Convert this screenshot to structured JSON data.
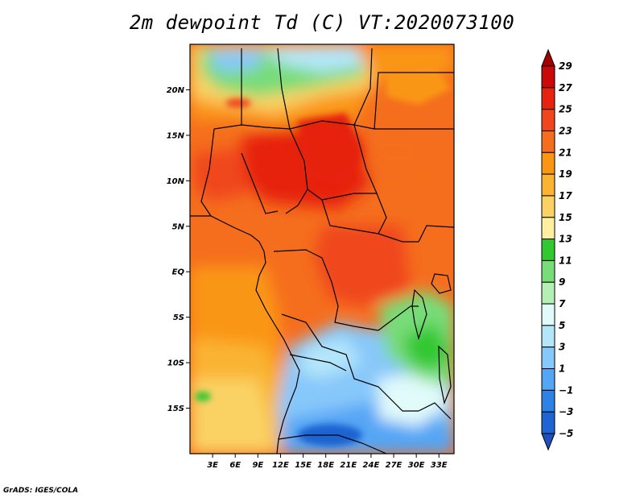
{
  "title": "2m dewpoint Td (C) VT:2020073100",
  "footer": "GrADS: IGES/COLA",
  "map": {
    "lon_range": [
      0,
      35
    ],
    "lat_range": [
      -20,
      25
    ],
    "lon_ticks": [
      "3E",
      "6E",
      "9E",
      "12E",
      "15E",
      "18E",
      "21E",
      "24E",
      "27E",
      "30E",
      "33E"
    ],
    "lat_ticks": [
      "20N",
      "15N",
      "10N",
      "5N",
      "EQ",
      "5S",
      "10S",
      "15S"
    ]
  },
  "colorbar": {
    "levels": [
      "29",
      "27",
      "25",
      "23",
      "21",
      "19",
      "17",
      "15",
      "13",
      "11",
      "9",
      "7",
      "5",
      "3",
      "1",
      "−1",
      "−3",
      "−5"
    ],
    "colors": [
      "#a50000",
      "#c80a0a",
      "#e6230f",
      "#f0461e",
      "#f56e1e",
      "#fa9614",
      "#fab432",
      "#fad264",
      "#fff0a0",
      "#32c832",
      "#78dc78",
      "#b4f0b4",
      "#e1fafa",
      "#b4e6fa",
      "#87c8fa",
      "#55a5f5",
      "#2d82e6",
      "#1e64d2",
      "#1e50be"
    ]
  }
}
